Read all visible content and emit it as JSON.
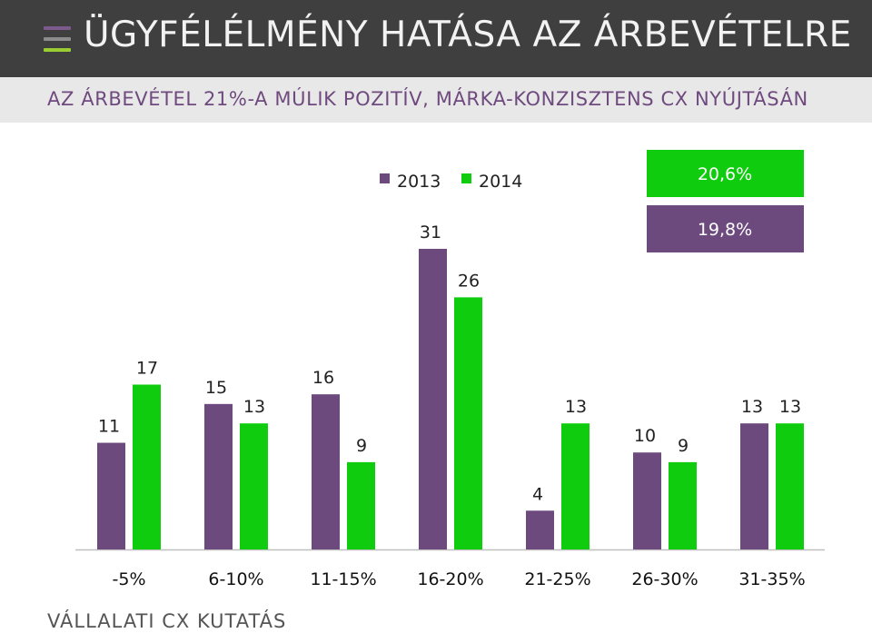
{
  "header": {
    "title": "ÜGYFÉLÉLMÉNY HATÁSA AZ ÁRBEVÉTELRE",
    "subtitle": "AZ ÁRBEVÉTEL 21%-A MÚLIK POZITÍV, MÁRKA-KONZISZTENS CX NYÚJTÁSÁN",
    "menu_icon": "hamburger-menu-icon",
    "menu_icon_colors": [
      "#7d5a8c",
      "#8c8c8c",
      "#9acd32"
    ]
  },
  "footer": {
    "source": "VÁLLALATI CX KUTATÁS"
  },
  "colors": {
    "series_2013": "#6d4a7e",
    "series_2014": "#0fcc0f"
  },
  "callouts": [
    {
      "label": "20,6%",
      "color": "#0fcc0f"
    },
    {
      "label": "19,8%",
      "color": "#6d4a7e"
    }
  ],
  "chart_data": {
    "type": "bar",
    "title": "",
    "xlabel": "",
    "ylabel": "",
    "categories": [
      "-5%",
      "6-10%",
      "11-15%",
      "16-20%",
      "21-25%",
      "26-30%",
      "31-35%"
    ],
    "series": [
      {
        "name": "2013",
        "values": [
          11,
          15,
          16,
          31,
          4,
          10,
          13
        ]
      },
      {
        "name": "2014",
        "values": [
          17,
          13,
          9,
          26,
          13,
          9,
          13
        ]
      }
    ],
    "ylim": [
      0,
      31
    ],
    "grid": false,
    "legend_position": "top-center",
    "data_labels": true
  }
}
